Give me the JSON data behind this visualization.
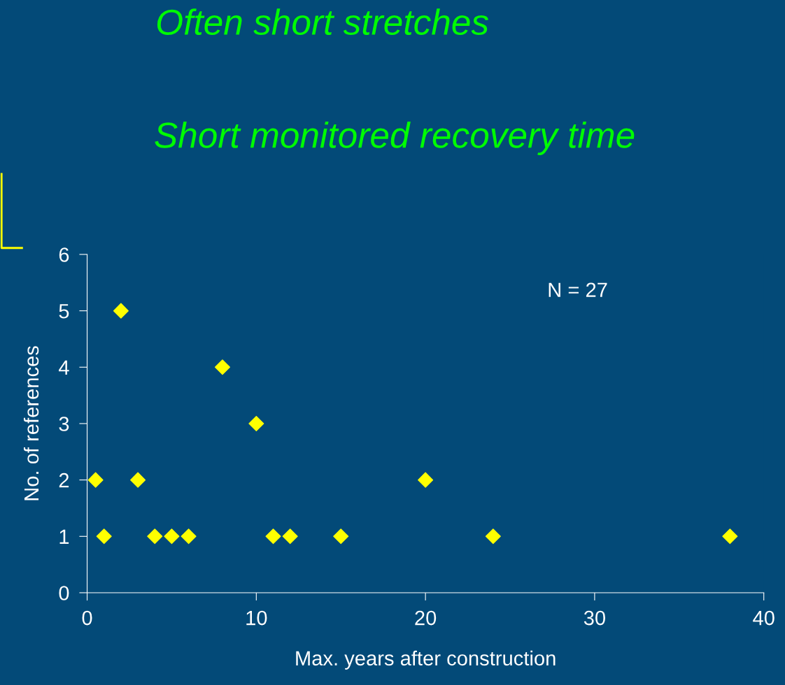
{
  "chart_data": {
    "type": "scatter",
    "title": "Often short stretches",
    "subtitle": "Short monitored recovery time",
    "xlabel": "Max. years after construction",
    "ylabel": "No. of references",
    "annotations": [
      "N = 27"
    ],
    "x": [
      0.5,
      1,
      2,
      3,
      4,
      5,
      6,
      8,
      10,
      11,
      12,
      15,
      20,
      24,
      38
    ],
    "values": [
      2,
      1,
      5,
      2,
      1,
      1,
      1,
      4,
      3,
      1,
      1,
      1,
      2,
      1,
      1
    ],
    "color": "#ffff00",
    "marker": "diamond",
    "xlim": [
      0,
      40
    ],
    "xticks": [
      0,
      10,
      20,
      30,
      40
    ],
    "ylim": [
      0,
      6
    ],
    "yticks": [
      0,
      1,
      2,
      3,
      4,
      5,
      6
    ],
    "grid": false,
    "legend": false
  }
}
